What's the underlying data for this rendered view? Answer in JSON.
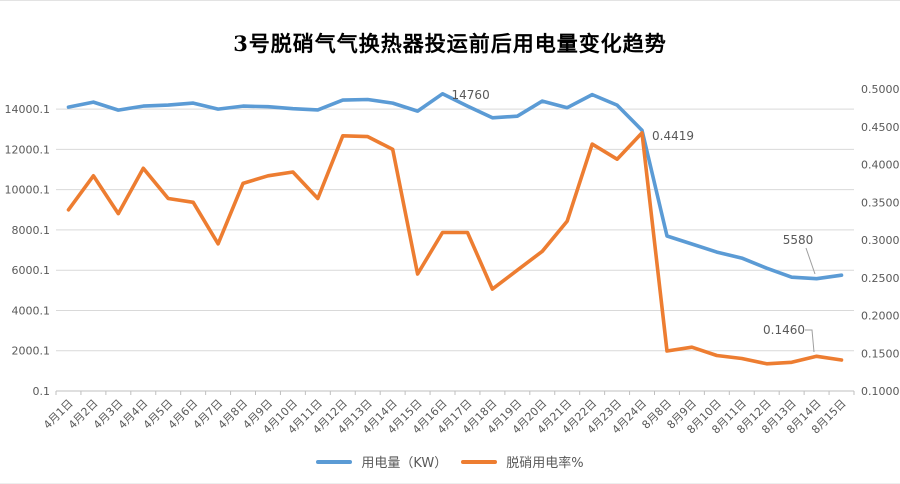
{
  "chart_data": {
    "type": "line",
    "title": "3号脱硝气气换热器投运前后用电量变化趋势",
    "categories": [
      "4月1日",
      "4月2日",
      "4月3日",
      "4月4日",
      "4月5日",
      "4月6日",
      "4月7日",
      "4月8日",
      "4月9日",
      "4月10日",
      "4月11日",
      "4月12日",
      "4月13日",
      "4月14日",
      "4月15日",
      "4月16日",
      "4月17日",
      "4月18日",
      "4月19日",
      "4月20日",
      "4月21日",
      "4月22日",
      "4月23日",
      "4月24日",
      "8月8日",
      "8月9日",
      "8月10日",
      "8月11日",
      "8月12日",
      "8月13日",
      "8月14日",
      "8月15日"
    ],
    "series": [
      {
        "name": "用电量（KW）",
        "axis": "left",
        "color": "#5B9BD5",
        "values": [
          14100,
          14350,
          13950,
          14150,
          14200,
          14300,
          14000,
          14150,
          14120,
          14020,
          13960,
          14450,
          14480,
          14300,
          13900,
          14760,
          14150,
          13570,
          13650,
          14400,
          14070,
          14720,
          14200,
          12950,
          7700,
          7300,
          6900,
          6600,
          6100,
          5650,
          5580,
          5750
        ]
      },
      {
        "name": "脱硝用电率%",
        "axis": "right",
        "color": "#ED7D31",
        "values": [
          0.34,
          0.385,
          0.335,
          0.395,
          0.355,
          0.35,
          0.295,
          0.375,
          0.385,
          0.39,
          0.355,
          0.438,
          0.437,
          0.42,
          0.255,
          0.31,
          0.31,
          0.235,
          0.26,
          0.285,
          0.325,
          0.427,
          0.407,
          0.4419,
          0.153,
          0.158,
          0.147,
          0.143,
          0.136,
          0.138,
          0.146,
          0.141
        ]
      }
    ],
    "left_axis": {
      "min": 0.1,
      "max": 15000.1,
      "ticks": [
        "0.1",
        "2000.1",
        "4000.1",
        "6000.1",
        "8000.1",
        "10000.1",
        "12000.1",
        "14000.1"
      ]
    },
    "right_axis": {
      "min": 0.1,
      "max": 0.5,
      "ticks": [
        "0.1000",
        "0.1500",
        "0.2000",
        "0.2500",
        "0.3000",
        "0.3500",
        "0.4000",
        "0.4500",
        "0.5000"
      ]
    },
    "grid": true,
    "legend_position": "bottom",
    "annotations": [
      {
        "text": "14760",
        "series": 0,
        "category": "4月16日"
      },
      {
        "text": "0.4419",
        "series": 1,
        "category": "4月24日"
      },
      {
        "text": "5580",
        "series": 0,
        "category": "8月14日"
      },
      {
        "text": "0.1460",
        "series": 1,
        "category": "8月14日"
      }
    ],
    "colors": {
      "grid": "#D9D9D9",
      "axis_line": "#BFBFBF",
      "tick_text": "#595959",
      "annotation_text": "#3b3b3b",
      "leader_line": "#9e9e9e"
    }
  }
}
